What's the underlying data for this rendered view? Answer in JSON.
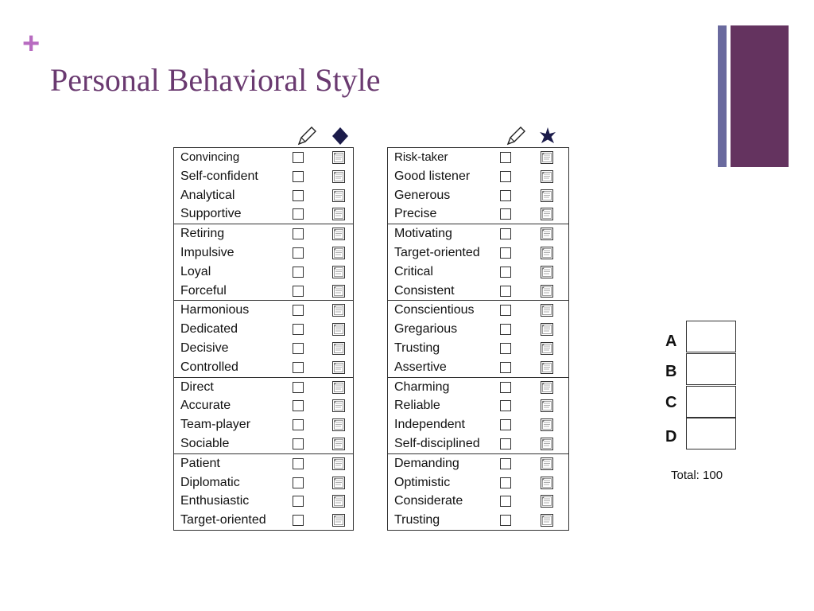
{
  "slide": {
    "title": "Personal Behavioral Style",
    "accent_color": "#64335f",
    "accent_secondary_color": "#6a6a9e",
    "plus_color": "#b76bc0"
  },
  "left_table": {
    "header_icons": [
      "pencil-icon",
      "diamond-icon"
    ],
    "groups": [
      [
        "Convincing",
        "Self-confident",
        "Analytical",
        "Supportive"
      ],
      [
        "Retiring",
        "Impulsive",
        "Loyal",
        "Forceful"
      ],
      [
        "Harmonious",
        "Dedicated",
        "Decisive",
        "Controlled"
      ],
      [
        "Direct",
        "Accurate",
        "Team-player",
        "Sociable"
      ],
      [
        "Patient",
        "Diplomatic",
        "Enthusiastic",
        "Target-oriented"
      ]
    ]
  },
  "right_table": {
    "header_icons": [
      "pencil-icon",
      "star-icon"
    ],
    "groups": [
      [
        "Risk-taker",
        "Good listener",
        "Generous",
        "Precise"
      ],
      [
        "Motivating",
        "Target-oriented",
        "Critical",
        "Consistent"
      ],
      [
        "Conscientious",
        "Gregarious",
        "Trusting",
        "Assertive"
      ],
      [
        "Charming",
        "Reliable",
        "Independent",
        "Self-disciplined"
      ],
      [
        "Demanding",
        "Optimistic",
        "Considerate",
        "Trusting"
      ]
    ]
  },
  "scores": {
    "letters": [
      "A",
      "B",
      "C",
      "D"
    ],
    "total_label": "Total: 100"
  }
}
